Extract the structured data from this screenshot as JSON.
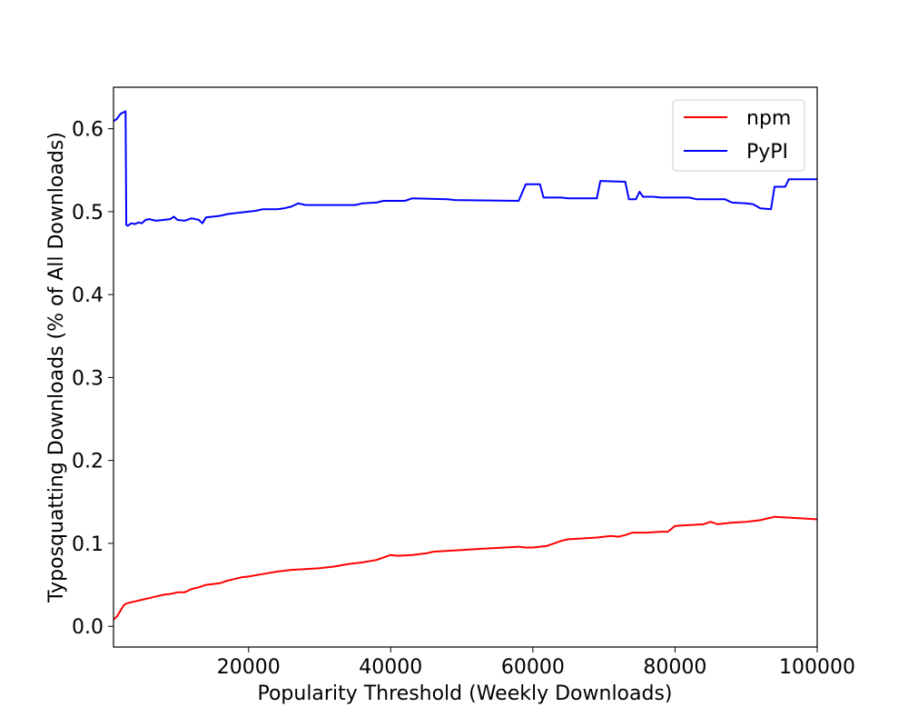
{
  "chart_data": {
    "type": "line",
    "xlabel": "Popularity Threshold (Weekly Downloads)",
    "ylabel": "Typosquatting Downloads (% of All Downloads)",
    "xlim": [
      1000,
      100000
    ],
    "ylim": [
      -0.025,
      0.65
    ],
    "xticks": [
      20000,
      40000,
      60000,
      80000,
      100000
    ],
    "yticks": [
      0.0,
      0.1,
      0.2,
      0.3,
      0.4,
      0.5,
      0.6
    ],
    "xtick_labels": [
      "20000",
      "40000",
      "60000",
      "80000",
      "100000"
    ],
    "ytick_labels": [
      "0.0",
      "0.1",
      "0.2",
      "0.3",
      "0.4",
      "0.5",
      "0.6"
    ],
    "grid": false,
    "legend_position": "top-right",
    "series": [
      {
        "name": "npm",
        "color": "#ff0000",
        "points": [
          [
            1000,
            0.008
          ],
          [
            1500,
            0.012
          ],
          [
            2000,
            0.019
          ],
          [
            2500,
            0.026
          ],
          [
            3000,
            0.028
          ],
          [
            4000,
            0.03
          ],
          [
            5000,
            0.032
          ],
          [
            6000,
            0.034
          ],
          [
            7000,
            0.036
          ],
          [
            8000,
            0.038
          ],
          [
            9000,
            0.039
          ],
          [
            10000,
            0.041
          ],
          [
            11000,
            0.041
          ],
          [
            12000,
            0.045
          ],
          [
            13000,
            0.047
          ],
          [
            14000,
            0.05
          ],
          [
            16000,
            0.052
          ],
          [
            17000,
            0.055
          ],
          [
            18000,
            0.057
          ],
          [
            19000,
            0.059
          ],
          [
            20000,
            0.06
          ],
          [
            22000,
            0.063
          ],
          [
            24000,
            0.066
          ],
          [
            26000,
            0.068
          ],
          [
            28000,
            0.069
          ],
          [
            30000,
            0.07
          ],
          [
            32000,
            0.072
          ],
          [
            34000,
            0.075
          ],
          [
            36000,
            0.077
          ],
          [
            38000,
            0.08
          ],
          [
            40000,
            0.086
          ],
          [
            41000,
            0.085
          ],
          [
            43000,
            0.086
          ],
          [
            45000,
            0.088
          ],
          [
            46000,
            0.09
          ],
          [
            48000,
            0.091
          ],
          [
            50000,
            0.092
          ],
          [
            52000,
            0.093
          ],
          [
            54000,
            0.094
          ],
          [
            56000,
            0.095
          ],
          [
            58000,
            0.096
          ],
          [
            59000,
            0.095
          ],
          [
            60000,
            0.095
          ],
          [
            62000,
            0.097
          ],
          [
            64000,
            0.103
          ],
          [
            65000,
            0.105
          ],
          [
            67000,
            0.106
          ],
          [
            69000,
            0.107
          ],
          [
            71000,
            0.109
          ],
          [
            72000,
            0.108
          ],
          [
            73000,
            0.11
          ],
          [
            74000,
            0.113
          ],
          [
            76000,
            0.113
          ],
          [
            78000,
            0.114
          ],
          [
            79000,
            0.114
          ],
          [
            80000,
            0.121
          ],
          [
            82000,
            0.122
          ],
          [
            84000,
            0.123
          ],
          [
            85000,
            0.126
          ],
          [
            86000,
            0.123
          ],
          [
            87000,
            0.124
          ],
          [
            88000,
            0.125
          ],
          [
            90000,
            0.126
          ],
          [
            92000,
            0.128
          ],
          [
            93000,
            0.13
          ],
          [
            94000,
            0.132
          ],
          [
            96000,
            0.131
          ],
          [
            98000,
            0.13
          ],
          [
            100000,
            0.129
          ]
        ]
      },
      {
        "name": "PyPI",
        "color": "#0000ff",
        "points": [
          [
            1000,
            0.609
          ],
          [
            1500,
            0.612
          ],
          [
            2000,
            0.618
          ],
          [
            2700,
            0.621
          ],
          [
            2800,
            0.484
          ],
          [
            3000,
            0.483
          ],
          [
            3500,
            0.486
          ],
          [
            4000,
            0.485
          ],
          [
            4500,
            0.487
          ],
          [
            5000,
            0.486
          ],
          [
            5500,
            0.49
          ],
          [
            6000,
            0.491
          ],
          [
            7000,
            0.489
          ],
          [
            8000,
            0.49
          ],
          [
            9000,
            0.491
          ],
          [
            9500,
            0.494
          ],
          [
            10000,
            0.49
          ],
          [
            11000,
            0.489
          ],
          [
            12000,
            0.492
          ],
          [
            13000,
            0.49
          ],
          [
            13500,
            0.486
          ],
          [
            14000,
            0.493
          ],
          [
            15000,
            0.494
          ],
          [
            16000,
            0.495
          ],
          [
            17000,
            0.497
          ],
          [
            19000,
            0.499
          ],
          [
            21000,
            0.501
          ],
          [
            22000,
            0.503
          ],
          [
            24000,
            0.503
          ],
          [
            25000,
            0.504
          ],
          [
            26000,
            0.506
          ],
          [
            27000,
            0.51
          ],
          [
            28000,
            0.508
          ],
          [
            30000,
            0.508
          ],
          [
            33000,
            0.508
          ],
          [
            35000,
            0.508
          ],
          [
            36000,
            0.51
          ],
          [
            38000,
            0.511
          ],
          [
            39000,
            0.513
          ],
          [
            42000,
            0.513
          ],
          [
            43000,
            0.516
          ],
          [
            48000,
            0.515
          ],
          [
            49000,
            0.514
          ],
          [
            58000,
            0.513
          ],
          [
            58500,
            0.523
          ],
          [
            59000,
            0.533
          ],
          [
            61000,
            0.533
          ],
          [
            61500,
            0.517
          ],
          [
            64000,
            0.517
          ],
          [
            65000,
            0.516
          ],
          [
            68000,
            0.516
          ],
          [
            69000,
            0.516
          ],
          [
            69500,
            0.537
          ],
          [
            73000,
            0.536
          ],
          [
            73500,
            0.515
          ],
          [
            74500,
            0.515
          ],
          [
            75000,
            0.524
          ],
          [
            75500,
            0.518
          ],
          [
            77000,
            0.518
          ],
          [
            78000,
            0.517
          ],
          [
            82000,
            0.517
          ],
          [
            83000,
            0.515
          ],
          [
            87000,
            0.515
          ],
          [
            88000,
            0.511
          ],
          [
            90000,
            0.51
          ],
          [
            91000,
            0.509
          ],
          [
            92000,
            0.504
          ],
          [
            93500,
            0.503
          ],
          [
            94000,
            0.53
          ],
          [
            95500,
            0.53
          ],
          [
            96000,
            0.539
          ],
          [
            100000,
            0.539
          ]
        ]
      }
    ]
  }
}
